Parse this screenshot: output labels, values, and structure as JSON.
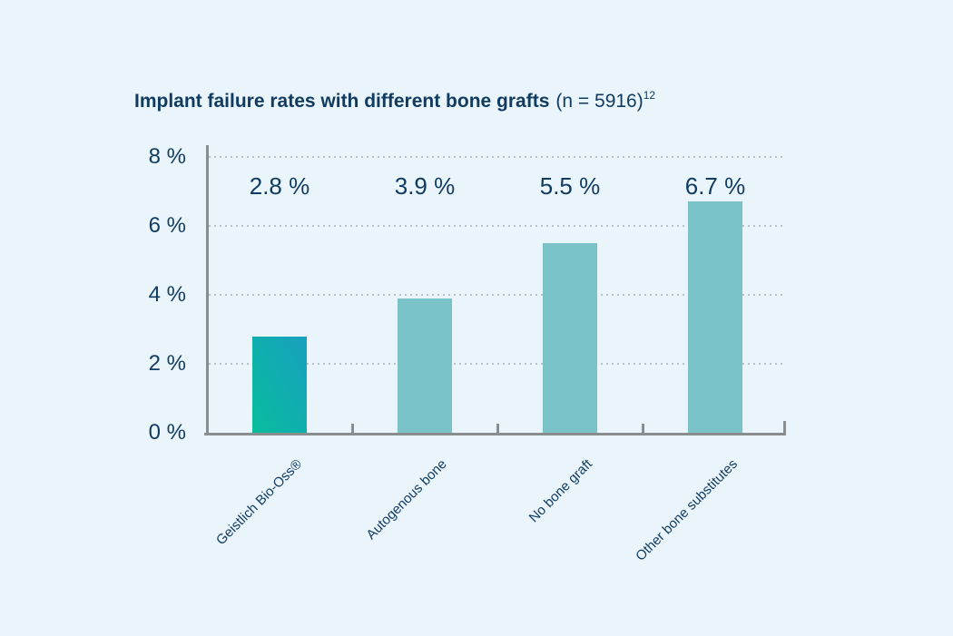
{
  "page": {
    "background": "#eaf4fb"
  },
  "chart_data": {
    "type": "bar",
    "title": "Implant failure rates with different bone grafts (n = 5916)¹²",
    "title_parts": {
      "bold": "Implant failure rates with different bone grafts",
      "regular": "(n = 5916)",
      "superscript": "12"
    },
    "categories": [
      "Geistlich Bio-Oss®",
      "Autogenous bone",
      "No bone graft",
      "Other bone substitutes"
    ],
    "values": [
      2.8,
      3.9,
      5.5,
      6.7
    ],
    "value_labels": [
      "2.8 %",
      "3.9 %",
      "5.5 %",
      "6.7 %"
    ],
    "xlabel": "",
    "ylabel": "",
    "ylim": [
      0,
      8
    ],
    "y_ticks": [
      {
        "value": 8,
        "label": "8 %"
      },
      {
        "value": 6,
        "label": "6 %"
      },
      {
        "value": 4,
        "label": "4 %"
      },
      {
        "value": 2,
        "label": "2 %"
      },
      {
        "value": 0,
        "label": "0 %"
      }
    ],
    "grid": "horizontal dotted gridlines at 2% steps",
    "legend": "none",
    "highlighted_category": "Geistlich Bio-Oss®",
    "colors": {
      "background": "#eaf4fb",
      "text": "#113c61",
      "bar": "#7ac4c9",
      "highlight_bar_gradient_top": "#18a0bf",
      "highlight_bar_gradient_bottom": "#07bd9d",
      "axis": "#8a8d8d",
      "gridline": "#b9c0c6"
    }
  }
}
